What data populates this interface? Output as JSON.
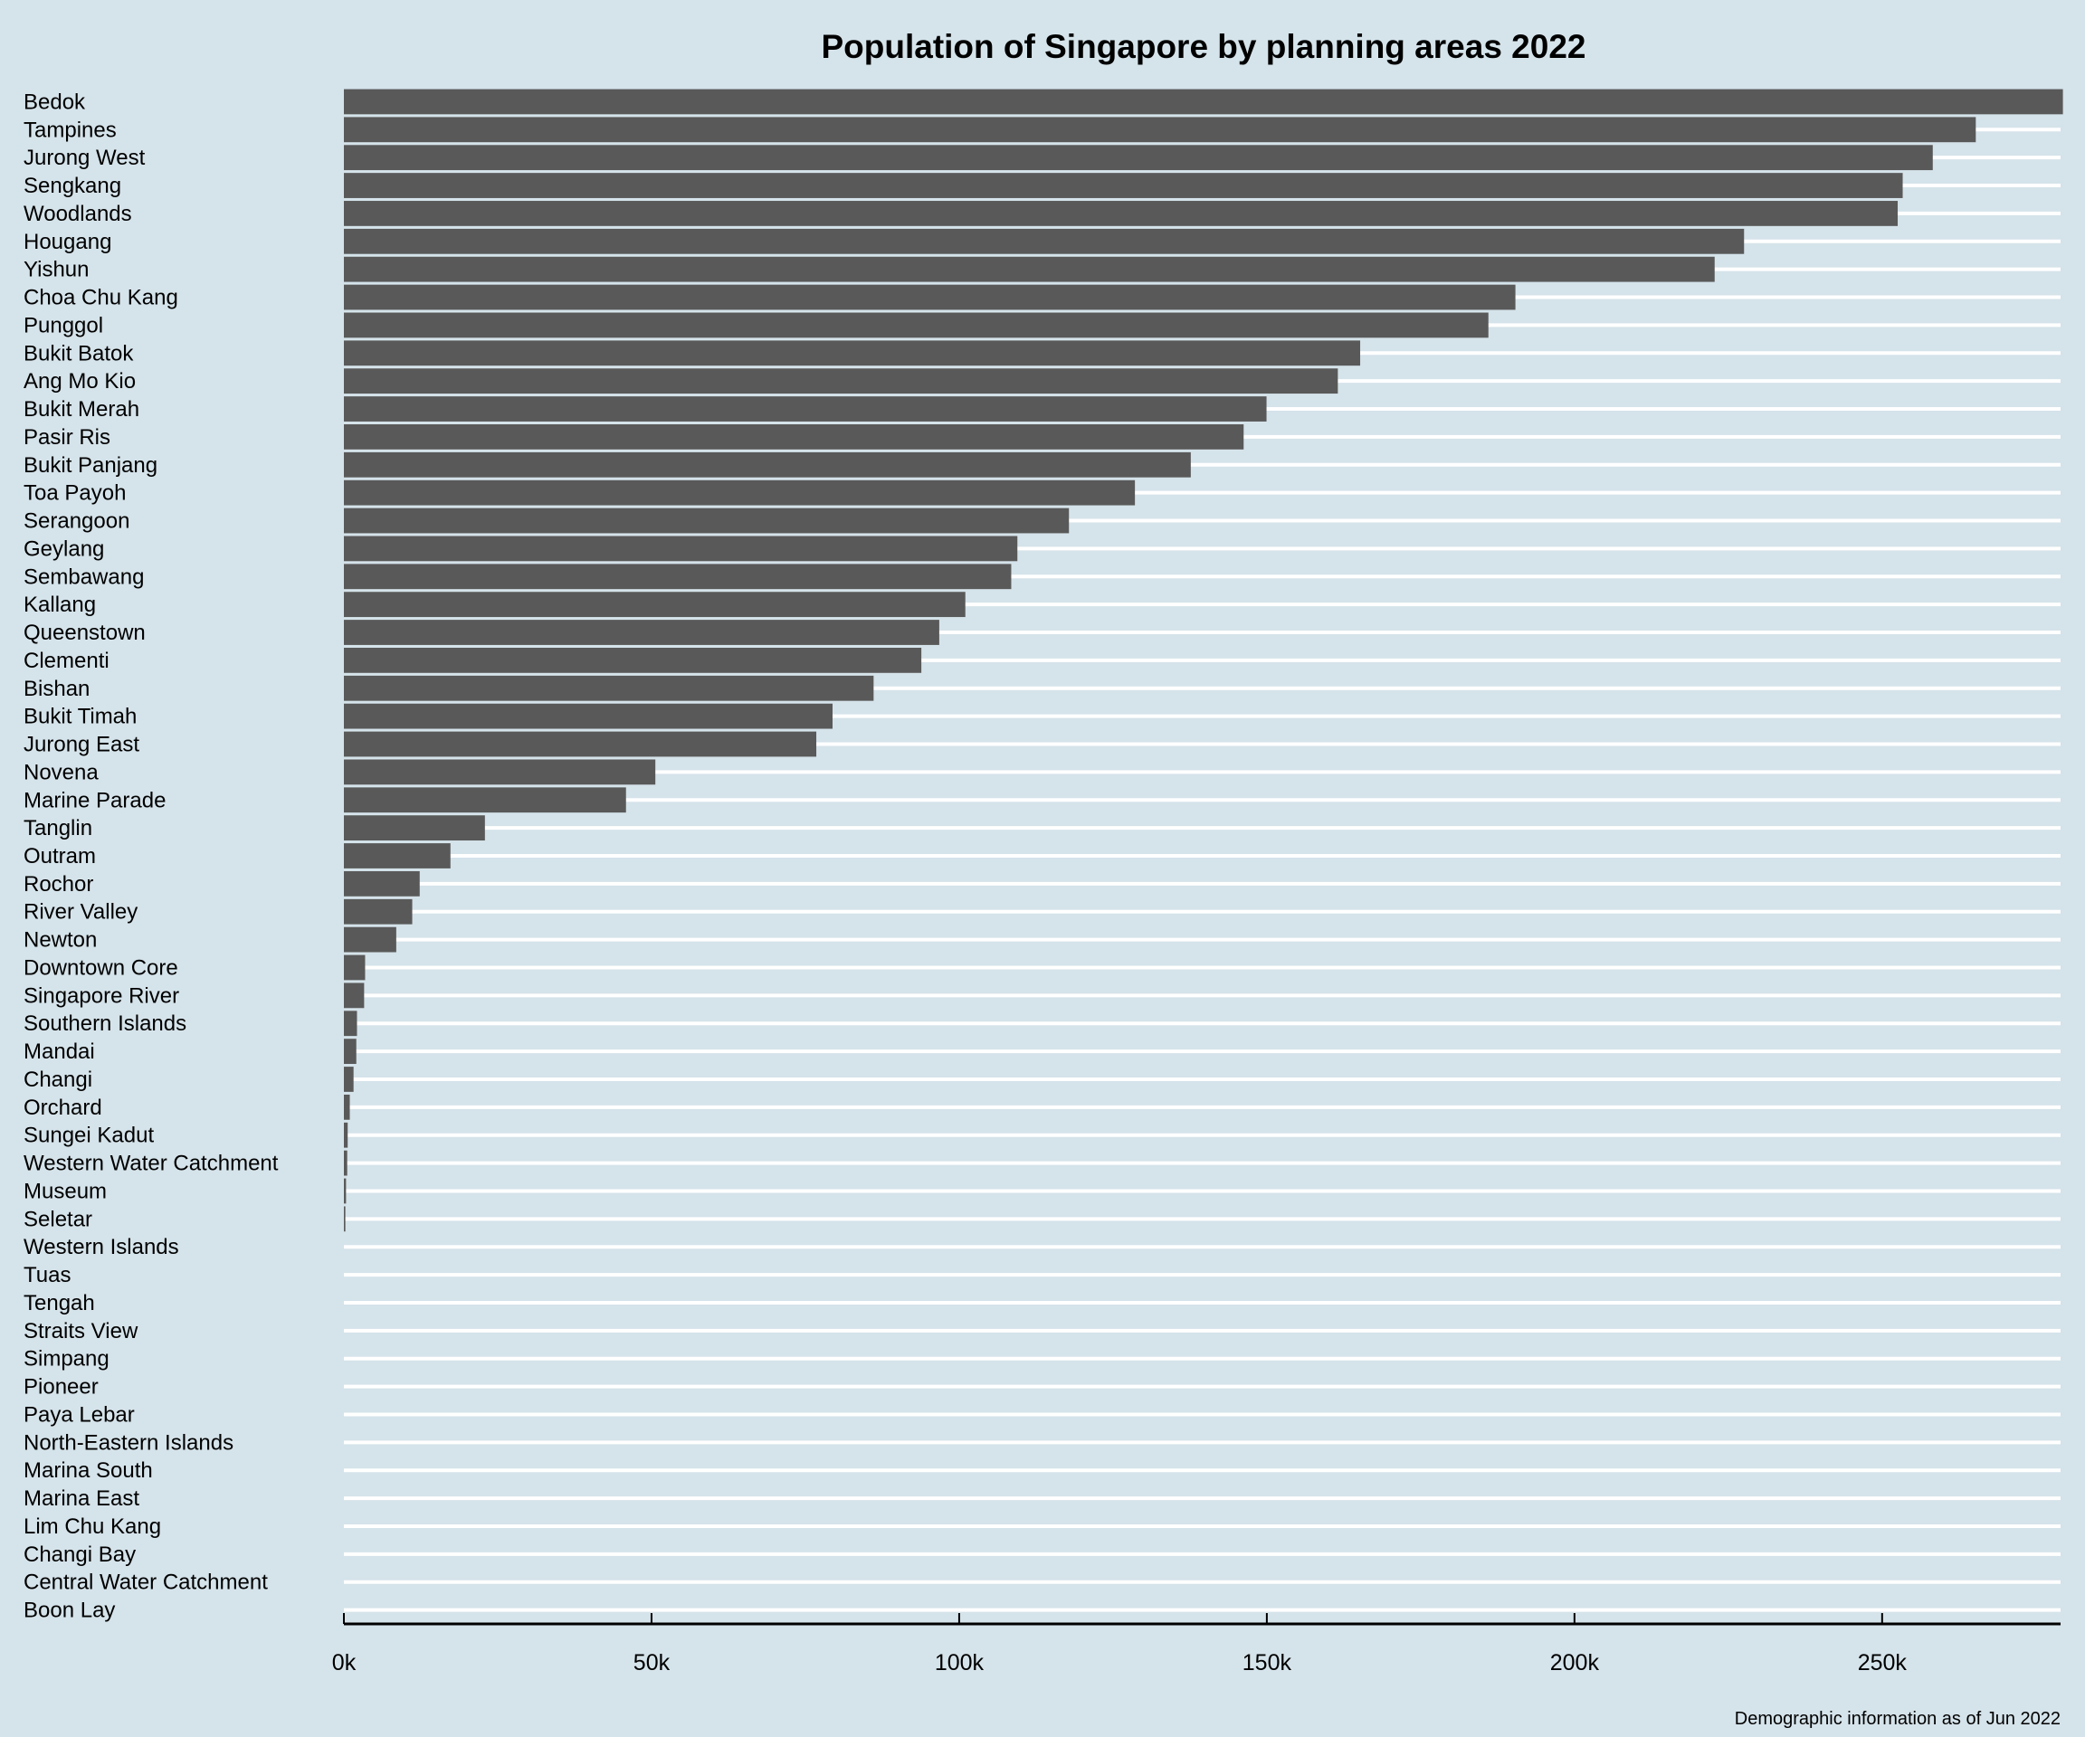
{
  "chart_data": {
    "type": "bar",
    "orientation": "horizontal",
    "title": "Population of Singapore by planning areas 2022",
    "caption": "Demographic information as of Jun 2022",
    "xlabel": "",
    "ylabel": "",
    "xlim": [
      0,
      279000
    ],
    "x_ticks": [
      0,
      50000,
      100000,
      150000,
      200000,
      250000
    ],
    "x_tick_labels": [
      "0k",
      "50k",
      "100k",
      "150k",
      "200k",
      "250k"
    ],
    "grid": "horizontal",
    "colors": {
      "background": "#d5e3ea",
      "bar": "#595959",
      "grid": "#ffffff"
    },
    "categories": [
      "Bedok",
      "Tampines",
      "Jurong West",
      "Sengkang",
      "Woodlands",
      "Hougang",
      "Yishun",
      "Choa Chu Kang",
      "Punggol",
      "Bukit Batok",
      "Ang Mo Kio",
      "Bukit Merah",
      "Pasir Ris",
      "Bukit Panjang",
      "Toa Payoh",
      "Serangoon",
      "Geylang",
      "Sembawang",
      "Kallang",
      "Queenstown",
      "Clementi",
      "Bishan",
      "Bukit Timah",
      "Jurong East",
      "Novena",
      "Marine Parade",
      "Tanglin",
      "Outram",
      "Rochor",
      "River Valley",
      "Newton",
      "Downtown Core",
      "Singapore River",
      "Southern Islands",
      "Mandai",
      "Changi",
      "Orchard",
      "Sungei Kadut",
      "Western Water Catchment",
      "Museum",
      "Seletar",
      "Western Islands",
      "Tuas",
      "Tengah",
      "Straits View",
      "Simpang",
      "Pioneer",
      "Paya Lebar",
      "North-Eastern Islands",
      "Marina South",
      "Marina East",
      "Lim Chu Kang",
      "Changi Bay",
      "Central Water Catchment",
      "Boon Lay"
    ],
    "values": [
      279380,
      265220,
      258230,
      253340,
      252530,
      227560,
      222780,
      190400,
      186010,
      165170,
      161540,
      149950,
      146230,
      137640,
      128560,
      117840,
      109460,
      108460,
      101000,
      96760,
      93850,
      86090,
      79420,
      76780,
      50620,
      45850,
      22920,
      17320,
      12320,
      11110,
      8510,
      3450,
      3290,
      2130,
      2020,
      1570,
      960,
      620,
      540,
      350,
      240,
      0,
      0,
      0,
      0,
      0,
      0,
      0,
      0,
      0,
      0,
      0,
      0,
      0,
      0
    ]
  }
}
